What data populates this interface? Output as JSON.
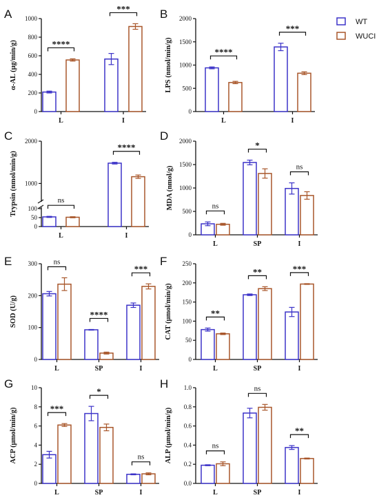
{
  "legend": [
    {
      "name": "WT",
      "color": "#3b32c8"
    },
    {
      "name": "WUCI",
      "color": "#a8562a"
    }
  ],
  "colors": {
    "wt_edge": "#3b32c8",
    "wuci_edge": "#a8562a",
    "axis": "#111111"
  },
  "chart_data": [
    {
      "id": "A",
      "type": "bar",
      "letter": "A",
      "ylabel": "α-AL (μg/min/g)",
      "categories": [
        "L",
        "I"
      ],
      "ylim": [
        0,
        1000
      ],
      "yticks": [
        0,
        200,
        400,
        600,
        800,
        1000
      ],
      "series": [
        {
          "name": "WT",
          "values": [
            210,
            565
          ],
          "errors": [
            10,
            60
          ]
        },
        {
          "name": "WUCI",
          "values": [
            555,
            915
          ],
          "errors": [
            12,
            30
          ]
        }
      ],
      "significance": [
        "****",
        "***"
      ]
    },
    {
      "id": "B",
      "type": "bar",
      "letter": "B",
      "ylabel": "LPS (nmol/min/g)",
      "categories": [
        "L",
        "I"
      ],
      "ylim": [
        0,
        2000
      ],
      "yticks": [
        0,
        500,
        1000,
        1500,
        2000
      ],
      "series": [
        {
          "name": "WT",
          "values": [
            940,
            1390
          ],
          "errors": [
            20,
            80
          ]
        },
        {
          "name": "WUCI",
          "values": [
            625,
            825
          ],
          "errors": [
            25,
            30
          ]
        }
      ],
      "significance": [
        "****",
        "***"
      ]
    },
    {
      "id": "C",
      "type": "bar",
      "letter": "C",
      "ylabel": "Trypsin (nmol/min/g)",
      "categories": [
        "L",
        "I"
      ],
      "ylim": [
        0,
        2000
      ],
      "yticks": [
        0,
        50,
        100,
        1000,
        2000
      ],
      "axis_break": {
        "lower": [
          0,
          100
        ],
        "upper": [
          600,
          2000
        ]
      },
      "series": [
        {
          "name": "WT",
          "values": [
            54,
            1480
          ],
          "errors": [
            3,
            20
          ]
        },
        {
          "name": "WUCI",
          "values": [
            52,
            1160
          ],
          "errors": [
            3,
            40
          ]
        }
      ],
      "significance": [
        "ns",
        "****"
      ]
    },
    {
      "id": "D",
      "type": "bar",
      "letter": "D",
      "ylabel": "MDA (nmol/g)",
      "categories": [
        "L",
        "SP",
        "I"
      ],
      "ylim": [
        0,
        2000
      ],
      "yticks": [
        0,
        500,
        1000,
        1500,
        2000
      ],
      "series": [
        {
          "name": "WT",
          "values": [
            235,
            1545,
            990
          ],
          "errors": [
            40,
            50,
            120
          ]
        },
        {
          "name": "WUCI",
          "values": [
            225,
            1310,
            840
          ],
          "errors": [
            20,
            100,
            80
          ]
        }
      ],
      "significance": [
        "ns",
        "*",
        "ns"
      ]
    },
    {
      "id": "E",
      "type": "bar",
      "letter": "E",
      "ylabel": "SOD (U/g)",
      "categories": [
        "L",
        "SP",
        "I"
      ],
      "ylim": [
        0,
        300
      ],
      "yticks": [
        0,
        100,
        200,
        300
      ],
      "series": [
        {
          "name": "WT",
          "values": [
            206,
            93,
            170
          ],
          "errors": [
            7,
            1,
            7
          ]
        },
        {
          "name": "WUCI",
          "values": [
            236,
            20,
            229
          ],
          "errors": [
            20,
            3,
            8
          ]
        }
      ],
      "significance": [
        "ns",
        "****",
        "***"
      ]
    },
    {
      "id": "F",
      "type": "bar",
      "letter": "F",
      "ylabel": "CAT (μmol/min/g)",
      "categories": [
        "L",
        "SP",
        "I"
      ],
      "ylim": [
        0,
        250
      ],
      "yticks": [
        0,
        50,
        100,
        150,
        200,
        250
      ],
      "series": [
        {
          "name": "WT",
          "values": [
            78,
            169,
            124
          ],
          "errors": [
            4,
            2,
            12
          ]
        },
        {
          "name": "WUCI",
          "values": [
            67,
            185,
            197
          ],
          "errors": [
            2,
            5,
            1
          ]
        }
      ],
      "significance": [
        "**",
        "**",
        "***"
      ]
    },
    {
      "id": "G",
      "type": "bar",
      "letter": "G",
      "ylabel": "ACP (μmol/min/g)",
      "categories": [
        "L",
        "SP",
        "I"
      ],
      "ylim": [
        0,
        10
      ],
      "yticks": [
        0,
        2,
        4,
        6,
        8,
        10
      ],
      "series": [
        {
          "name": "WT",
          "values": [
            3.0,
            7.3,
            0.95
          ],
          "errors": [
            0.35,
            0.75,
            0.05
          ]
        },
        {
          "name": "WUCI",
          "values": [
            6.1,
            5.85,
            1.0
          ],
          "errors": [
            0.15,
            0.35,
            0.1
          ]
        }
      ],
      "significance": [
        "***",
        "*",
        "ns"
      ]
    },
    {
      "id": "H",
      "type": "bar",
      "letter": "H",
      "ylabel": "ALP (μmol/min/g)",
      "categories": [
        "L",
        "SP",
        "I"
      ],
      "ylim": [
        0,
        1.0
      ],
      "yticks": [
        0.0,
        0.2,
        0.4,
        0.6,
        0.8,
        1.0
      ],
      "series": [
        {
          "name": "WT",
          "values": [
            0.19,
            0.735,
            0.375
          ],
          "errors": [
            0.005,
            0.05,
            0.02
          ]
        },
        {
          "name": "WUCI",
          "values": [
            0.205,
            0.795,
            0.26
          ],
          "errors": [
            0.02,
            0.03,
            0.005
          ]
        }
      ],
      "significance": [
        "ns",
        "ns",
        "**"
      ]
    }
  ]
}
